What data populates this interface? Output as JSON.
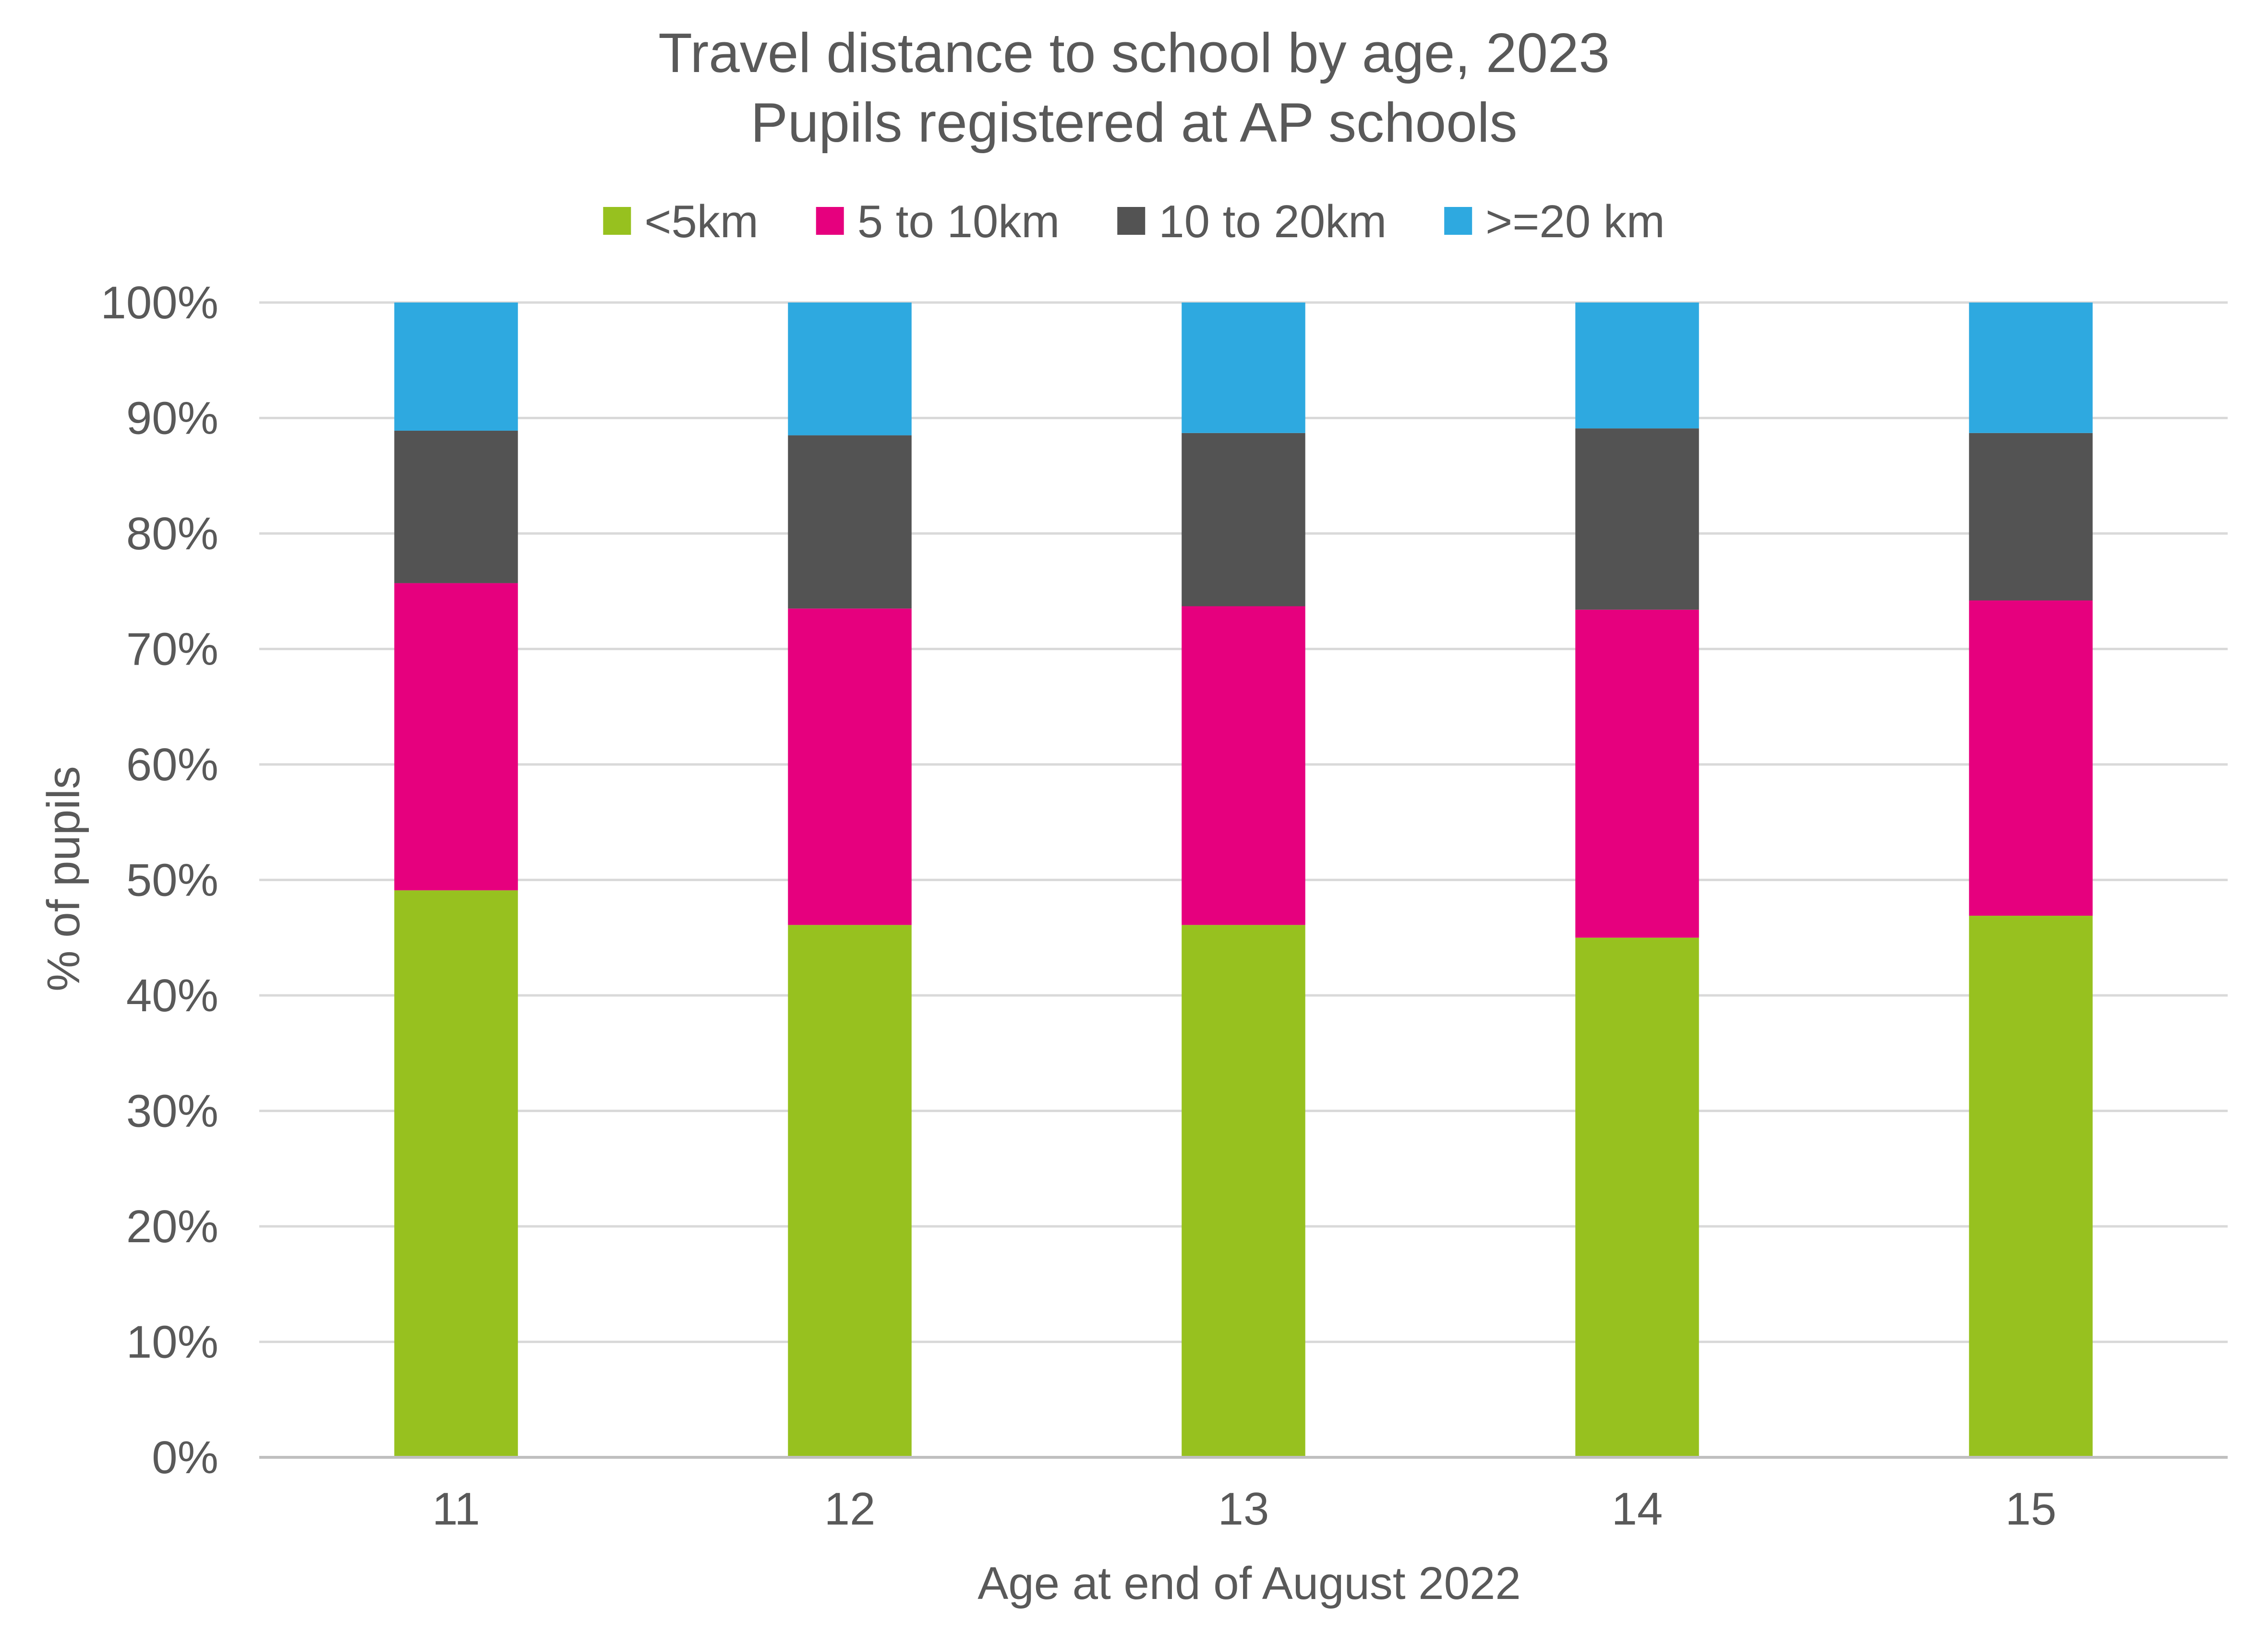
{
  "chart_data": {
    "type": "bar",
    "stacked": true,
    "percent_stacked": true,
    "title": "Travel distance to school by age, 2023",
    "subtitle": "Pupils registered at AP schools",
    "xlabel": "Age at end of August 2022",
    "ylabel": "% of pupils",
    "ylim": [
      0,
      100
    ],
    "y_ticks": [
      "0%",
      "10%",
      "20%",
      "30%",
      "40%",
      "50%",
      "60%",
      "70%",
      "80%",
      "90%",
      "100%"
    ],
    "grid": true,
    "legend_position": "top",
    "categories": [
      "11",
      "12",
      "13",
      "14",
      "15"
    ],
    "series": [
      {
        "name": "<5km",
        "color": "#97c11f",
        "values": [
          49.1,
          46.1,
          46.1,
          45.0,
          46.9
        ]
      },
      {
        "name": "5 to 10km",
        "color": "#e6007e",
        "values": [
          26.6,
          27.4,
          27.6,
          28.4,
          27.3
        ]
      },
      {
        "name": "10 to 20km",
        "color": "#535353",
        "values": [
          13.2,
          15.0,
          15.0,
          15.7,
          14.5
        ]
      },
      {
        "name": ">=20 km",
        "color": "#2ea9e0",
        "values": [
          11.1,
          11.5,
          11.3,
          10.9,
          11.3
        ]
      }
    ]
  },
  "colors": {
    "text": "#595959",
    "gridline": "#d9d9d9",
    "axis_line": "#bfbfbf"
  }
}
